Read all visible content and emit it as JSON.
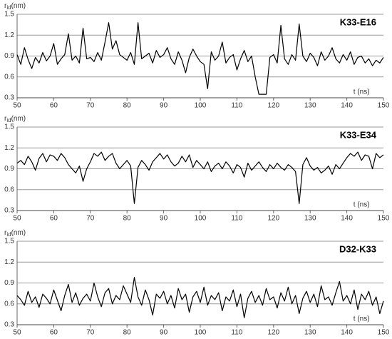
{
  "chart_data": [
    {
      "type": "line",
      "title": "K33-E16",
      "y_label_symbol": "r",
      "y_label_subscript": "id",
      "y_label_unit": "(nm)",
      "x_label": "t (ns)",
      "color": "#000000",
      "x": [
        50,
        51,
        52,
        53,
        54,
        55,
        56,
        57,
        58,
        59,
        60,
        61,
        62,
        63,
        64,
        65,
        66,
        67,
        68,
        69,
        70,
        71,
        72,
        73,
        74,
        75,
        76,
        77,
        78,
        79,
        80,
        81,
        82,
        83,
        84,
        85,
        86,
        87,
        88,
        89,
        90,
        91,
        92,
        93,
        94,
        95,
        96,
        97,
        98,
        99,
        100,
        101,
        102,
        103,
        104,
        105,
        106,
        107,
        108,
        109,
        110,
        111,
        112,
        113,
        114,
        115,
        116,
        117,
        118,
        119,
        120,
        121,
        122,
        123,
        124,
        125,
        126,
        127,
        128,
        129,
        130,
        131,
        132,
        133,
        134,
        135,
        136,
        137,
        138,
        139,
        140,
        141,
        142,
        143,
        144,
        145,
        146,
        147,
        148,
        149,
        150
      ],
      "values": [
        0.92,
        0.78,
        1.02,
        0.85,
        0.72,
        0.88,
        0.8,
        0.95,
        0.83,
        0.9,
        1.08,
        0.78,
        0.86,
        0.92,
        1.22,
        0.84,
        0.9,
        0.8,
        1.3,
        0.86,
        0.88,
        0.82,
        0.95,
        0.84,
        1.1,
        1.38,
        1.0,
        1.12,
        0.92,
        0.88,
        0.84,
        0.95,
        0.78,
        1.38,
        0.86,
        0.9,
        0.94,
        0.8,
        0.98,
        0.88,
        0.92,
        1.02,
        0.86,
        0.78,
        0.96,
        0.84,
        0.66,
        0.88,
        1.0,
        0.9,
        0.82,
        0.78,
        0.43,
        0.96,
        0.84,
        0.9,
        1.1,
        0.8,
        0.88,
        0.92,
        0.7,
        0.86,
        0.98,
        0.82,
        0.9,
        0.6,
        0.35,
        0.35,
        0.35,
        0.88,
        0.92,
        0.8,
        1.34,
        0.86,
        0.78,
        0.92,
        0.84,
        1.36,
        0.9,
        0.82,
        0.94,
        0.88,
        0.76,
        0.96,
        0.84,
        0.9,
        1.02,
        0.86,
        0.8,
        0.92,
        0.84,
        0.96,
        0.78,
        0.88,
        0.9,
        0.8,
        0.86,
        0.76,
        0.84,
        0.8,
        0.88
      ],
      "xlim": [
        50,
        150
      ],
      "xticks": [
        50,
        60,
        70,
        80,
        90,
        100,
        110,
        120,
        130,
        140,
        150
      ],
      "ylim": [
        0.3,
        1.5
      ],
      "yticks": [
        0.3,
        0.6,
        0.9,
        1.2,
        1.5
      ],
      "grid": true
    },
    {
      "type": "line",
      "title": "K33-E34",
      "y_label_symbol": "r",
      "y_label_subscript": "id",
      "y_label_unit": "(nm)",
      "x_label": "t (ns)",
      "color": "#000000",
      "x": [
        50,
        51,
        52,
        53,
        54,
        55,
        56,
        57,
        58,
        59,
        60,
        61,
        62,
        63,
        64,
        65,
        66,
        67,
        68,
        69,
        70,
        71,
        72,
        73,
        74,
        75,
        76,
        77,
        78,
        79,
        80,
        81,
        82,
        83,
        84,
        85,
        86,
        87,
        88,
        89,
        90,
        91,
        92,
        93,
        94,
        95,
        96,
        97,
        98,
        99,
        100,
        101,
        102,
        103,
        104,
        105,
        106,
        107,
        108,
        109,
        110,
        111,
        112,
        113,
        114,
        115,
        116,
        117,
        118,
        119,
        120,
        121,
        122,
        123,
        124,
        125,
        126,
        127,
        128,
        129,
        130,
        131,
        132,
        133,
        134,
        135,
        136,
        137,
        138,
        139,
        140,
        141,
        142,
        143,
        144,
        145,
        146,
        147,
        148,
        149,
        150
      ],
      "values": [
        0.98,
        1.02,
        0.96,
        1.08,
        1.0,
        0.88,
        1.05,
        1.12,
        1.0,
        1.1,
        1.08,
        1.02,
        1.12,
        1.06,
        0.96,
        0.9,
        0.84,
        0.94,
        0.72,
        0.9,
        1.0,
        1.12,
        1.08,
        1.14,
        1.02,
        1.08,
        1.12,
        0.98,
        0.9,
        0.96,
        1.02,
        0.94,
        0.4,
        0.92,
        1.02,
        0.96,
        0.88,
        1.0,
        1.06,
        1.12,
        1.04,
        1.1,
        1.0,
        0.94,
        0.98,
        1.08,
        1.0,
        1.1,
        0.92,
        1.02,
        0.96,
        0.9,
        1.0,
        0.86,
        0.94,
        0.98,
        0.9,
        1.0,
        0.94,
        0.84,
        0.96,
        0.92,
        0.78,
        0.98,
        0.88,
        0.94,
        1.0,
        0.92,
        0.86,
        0.96,
        0.9,
        0.98,
        0.92,
        0.88,
        0.96,
        0.92,
        0.86,
        0.4,
        0.96,
        1.06,
        0.94,
        0.88,
        0.92,
        0.84,
        0.88,
        0.94,
        0.82,
        0.96,
        0.9,
        0.98,
        1.06,
        1.12,
        1.08,
        1.14,
        1.02,
        1.1,
        1.08,
        0.9,
        1.12,
        1.06,
        1.1
      ],
      "xlim": [
        50,
        150
      ],
      "xticks": [
        50,
        60,
        70,
        80,
        90,
        100,
        110,
        120,
        130,
        140,
        150
      ],
      "ylim": [
        0.3,
        1.5
      ],
      "yticks": [
        0.3,
        0.6,
        0.9,
        1.2,
        1.5
      ],
      "grid": true
    },
    {
      "type": "line",
      "title": "D32-K33",
      "y_label_symbol": "r",
      "y_label_subscript": "id",
      "y_label_unit": "(nm)",
      "x_label": "t (ns)",
      "color": "#000000",
      "x": [
        50,
        51,
        52,
        53,
        54,
        55,
        56,
        57,
        58,
        59,
        60,
        61,
        62,
        63,
        64,
        65,
        66,
        67,
        68,
        69,
        70,
        71,
        72,
        73,
        74,
        75,
        76,
        77,
        78,
        79,
        80,
        81,
        82,
        83,
        84,
        85,
        86,
        87,
        88,
        89,
        90,
        91,
        92,
        93,
        94,
        95,
        96,
        97,
        98,
        99,
        100,
        101,
        102,
        103,
        104,
        105,
        106,
        107,
        108,
        109,
        110,
        111,
        112,
        113,
        114,
        115,
        116,
        117,
        118,
        119,
        120,
        121,
        122,
        123,
        124,
        125,
        126,
        127,
        128,
        129,
        130,
        131,
        132,
        133,
        134,
        135,
        136,
        137,
        138,
        139,
        140,
        141,
        142,
        143,
        144,
        145,
        146,
        147,
        148,
        149,
        150
      ],
      "values": [
        0.72,
        0.66,
        0.58,
        0.78,
        0.62,
        0.7,
        0.55,
        0.74,
        0.68,
        0.6,
        0.8,
        0.65,
        0.5,
        0.72,
        0.88,
        0.62,
        0.76,
        0.58,
        0.68,
        0.74,
        0.64,
        0.9,
        0.7,
        0.56,
        0.76,
        0.82,
        0.6,
        0.72,
        0.66,
        0.86,
        0.74,
        0.62,
        0.98,
        0.7,
        0.58,
        0.8,
        0.66,
        0.44,
        0.74,
        0.68,
        0.78,
        0.6,
        0.72,
        0.54,
        0.82,
        0.66,
        0.74,
        0.48,
        0.7,
        0.78,
        0.62,
        0.84,
        0.58,
        0.72,
        0.66,
        0.76,
        0.5,
        0.7,
        0.64,
        0.8,
        0.56,
        0.74,
        0.4,
        0.68,
        0.78,
        0.62,
        0.72,
        0.58,
        0.82,
        0.66,
        0.7,
        0.54,
        0.76,
        0.64,
        0.84,
        0.6,
        0.72,
        0.46,
        0.68,
        0.78,
        0.62,
        0.74,
        0.56,
        0.86,
        0.66,
        0.7,
        0.58,
        0.76,
        0.92,
        0.64,
        0.72,
        0.6,
        0.8,
        0.52,
        0.74,
        0.66,
        0.78,
        0.58,
        0.7,
        0.46,
        0.64
      ],
      "xlim": [
        50,
        150
      ],
      "xticks": [
        50,
        60,
        70,
        80,
        90,
        100,
        110,
        120,
        130,
        140,
        150
      ],
      "ylim": [
        0.3,
        1.5
      ],
      "yticks": [
        0.3,
        0.6,
        0.9,
        1.2,
        1.5
      ],
      "grid": true
    }
  ]
}
